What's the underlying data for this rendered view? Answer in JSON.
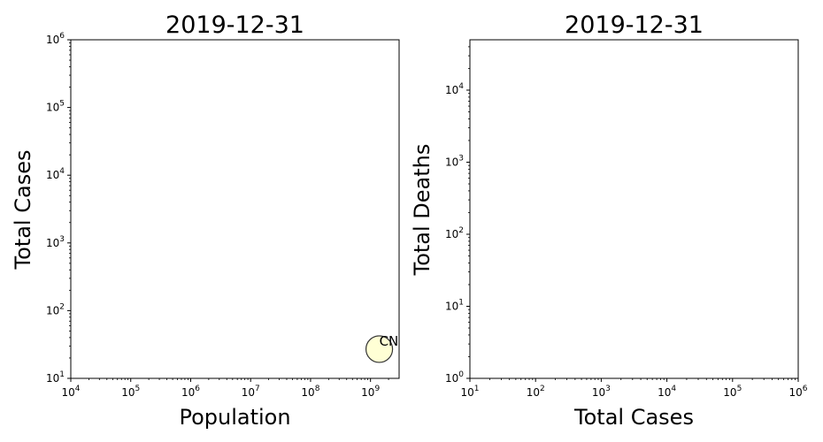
{
  "chart_data": [
    {
      "type": "scatter",
      "title": "2019-12-31",
      "xlabel": "Population",
      "ylabel": "Total Cases",
      "xscale": "log",
      "yscale": "log",
      "xlim": [
        10000,
        3000000000
      ],
      "ylim": [
        10,
        1000000
      ],
      "xticks": [
        {
          "base": "10",
          "exp": "4",
          "value": 10000
        },
        {
          "base": "10",
          "exp": "5",
          "value": 100000
        },
        {
          "base": "10",
          "exp": "6",
          "value": 1000000
        },
        {
          "base": "10",
          "exp": "7",
          "value": 10000000
        },
        {
          "base": "10",
          "exp": "8",
          "value": 100000000
        },
        {
          "base": "10",
          "exp": "9",
          "value": 1000000000
        }
      ],
      "yticks": [
        {
          "base": "10",
          "exp": "1",
          "value": 10
        },
        {
          "base": "10",
          "exp": "2",
          "value": 100
        },
        {
          "base": "10",
          "exp": "3",
          "value": 1000
        },
        {
          "base": "10",
          "exp": "4",
          "value": 10000
        },
        {
          "base": "10",
          "exp": "5",
          "value": 100000
        },
        {
          "base": "10",
          "exp": "6",
          "value": 1000000
        }
      ],
      "points": [
        {
          "label": "CN",
          "x": 1400000000,
          "y": 27,
          "color": "#ffffd0",
          "edge": "#333333"
        }
      ],
      "grid": false
    },
    {
      "type": "scatter",
      "title": "2019-12-31",
      "xlabel": "Total Cases",
      "ylabel": "Total Deaths",
      "xscale": "log",
      "yscale": "log",
      "xlim": [
        10,
        1000000
      ],
      "ylim": [
        1,
        50000
      ],
      "xticks": [
        {
          "base": "10",
          "exp": "1",
          "value": 10
        },
        {
          "base": "10",
          "exp": "2",
          "value": 100
        },
        {
          "base": "10",
          "exp": "3",
          "value": 1000
        },
        {
          "base": "10",
          "exp": "4",
          "value": 10000
        },
        {
          "base": "10",
          "exp": "5",
          "value": 100000
        },
        {
          "base": "10",
          "exp": "6",
          "value": 1000000
        }
      ],
      "yticks": [
        {
          "base": "10",
          "exp": "0",
          "value": 1
        },
        {
          "base": "10",
          "exp": "1",
          "value": 10
        },
        {
          "base": "10",
          "exp": "2",
          "value": 100
        },
        {
          "base": "10",
          "exp": "3",
          "value": 1000
        },
        {
          "base": "10",
          "exp": "4",
          "value": 10000
        }
      ],
      "points": [],
      "grid": false
    }
  ]
}
